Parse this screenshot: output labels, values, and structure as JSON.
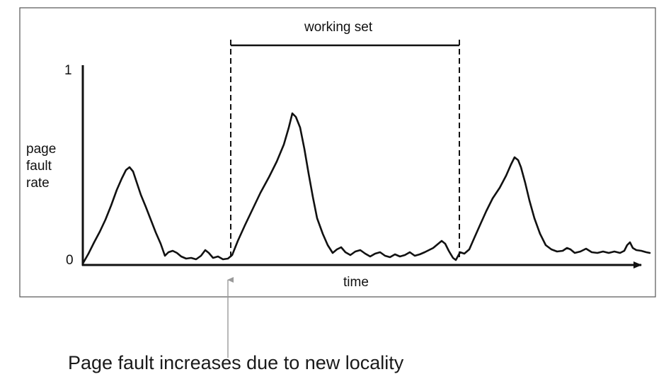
{
  "diagram": {
    "y_axis_top_label": "1",
    "y_axis_bottom_label": "0",
    "y_axis_title_lines": [
      "page",
      "fault",
      "rate"
    ],
    "x_axis_title": "time",
    "working_set_label": "working set",
    "caption": "Page fault increases due to new locality",
    "colors": {
      "line": "#111111",
      "frame": "#555555",
      "pointer": "#9a9a9a"
    }
  }
}
